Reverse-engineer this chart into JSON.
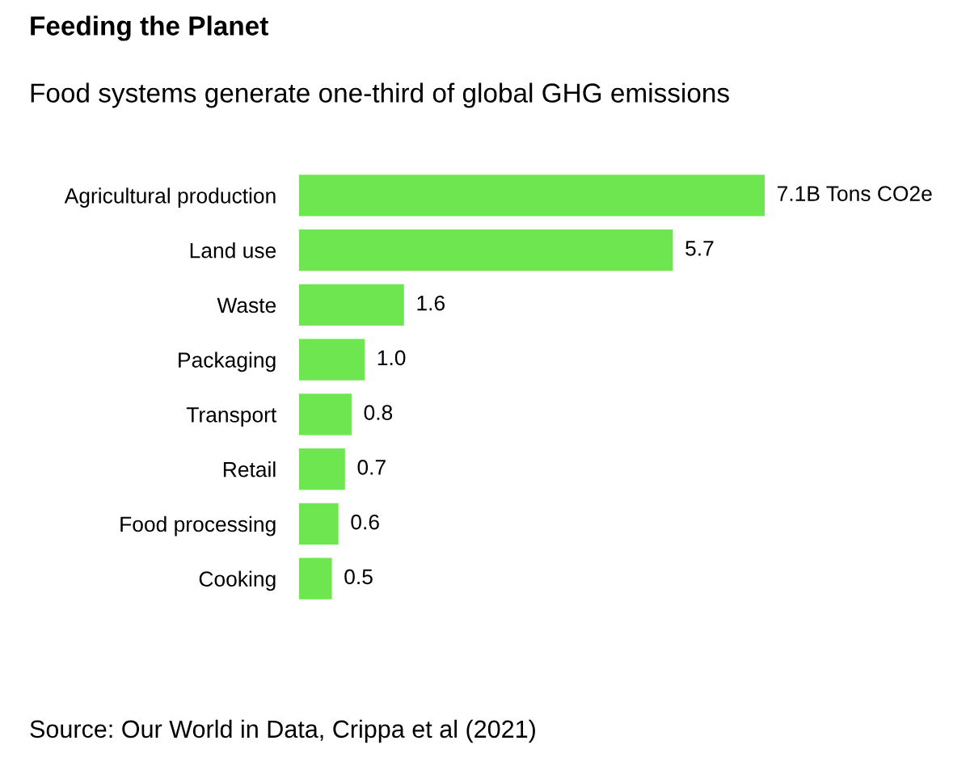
{
  "chart_data": {
    "type": "bar",
    "orientation": "horizontal",
    "title": "Feeding the Planet",
    "subtitle": "Food systems generate one-third of global GHG emissions",
    "categories": [
      "Agricultural production",
      "Land use",
      "Waste",
      "Packaging",
      "Transport",
      "Retail",
      "Food processing",
      "Cooking"
    ],
    "values": [
      7.1,
      5.7,
      1.6,
      1.0,
      0.8,
      0.7,
      0.6,
      0.5
    ],
    "value_labels": [
      "7.1",
      "5.7",
      "1.6",
      "1.0",
      "0.8",
      "0.7",
      "0.6",
      "0.5"
    ],
    "color": "#6ee64f",
    "annotations": [
      "B Tons CO2e",
      "Source: Our World in Data, Crippa et al (2021)"
    ]
  }
}
